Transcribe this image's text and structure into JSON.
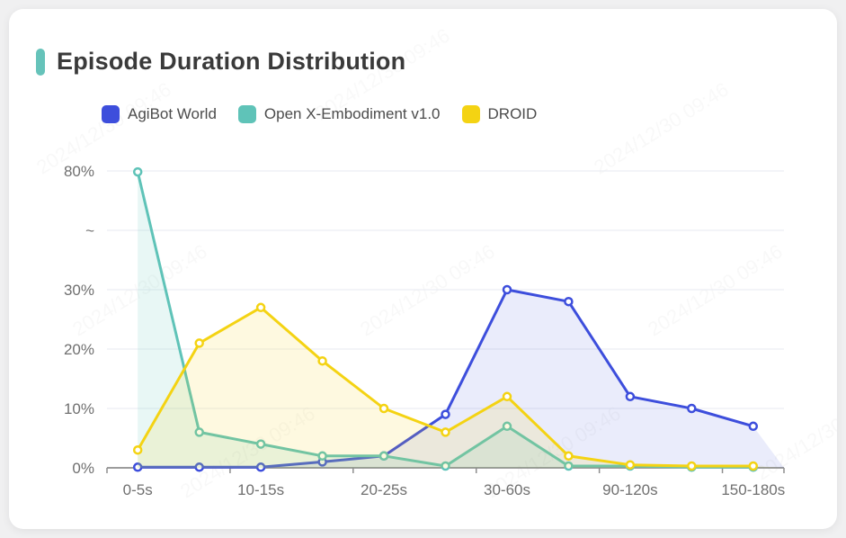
{
  "page": {
    "background": "#f0f0f1"
  },
  "card": {
    "title": "Episode Duration Distribution",
    "accent_color": "#66c3ba",
    "background": "#ffffff"
  },
  "legend": {
    "position": "top",
    "items": [
      {
        "label": "AgiBot World",
        "color": "#3d4edc"
      },
      {
        "label": "Open X-Embodiment v1.0",
        "color": "#5fc3b8"
      },
      {
        "label": "DROID",
        "color": "#f4d313"
      }
    ]
  },
  "watermark": {
    "text": "2024/12/30 09:46",
    "color": "#8a8a8a",
    "opacity": 0.05
  },
  "chart_data": {
    "type": "line",
    "title": "Episode Duration Distribution",
    "categories_count": 11,
    "x_tick_labels": [
      {
        "index": 0,
        "label": "0-5s"
      },
      {
        "index": 2,
        "label": "10-15s"
      },
      {
        "index": 4,
        "label": "20-25s"
      },
      {
        "index": 6,
        "label": "30-60s"
      },
      {
        "index": 8,
        "label": "90-120s"
      },
      {
        "index": 10,
        "label": "150-180s"
      }
    ],
    "series": [
      {
        "name": "AgiBot World",
        "color": "#3d4edc",
        "area_opacity": 0.11,
        "values": [
          0.1,
          0.1,
          0.1,
          1,
          2,
          9,
          30,
          28,
          12,
          10,
          7
        ]
      },
      {
        "name": "Open X-Embodiment v1.0",
        "color": "#5fc3b8",
        "area_opacity": 0.14,
        "values": [
          79.6,
          6,
          4,
          2,
          2,
          0.3,
          7,
          0.3,
          0.3,
          0.1,
          0.1
        ]
      },
      {
        "name": "DROID",
        "color": "#f4d313",
        "area_opacity": 0.13,
        "values": [
          3,
          21,
          27,
          18,
          10,
          6,
          12,
          2,
          0.5,
          0.3,
          0.3
        ]
      }
    ],
    "y_axis": {
      "unit": "%",
      "tick_labels": [
        "0%",
        "10%",
        "20%",
        "30%",
        "~",
        "80%"
      ],
      "tick_interval": 10,
      "axis_break": true,
      "break_after": 30,
      "top_value": 80
    },
    "grid": true,
    "legend_position": "top",
    "marker": "circle",
    "area_fill": true,
    "colors": {
      "grid_line": "#e7eaf1",
      "axis_line": "#8e8e8e",
      "tick_text": "#6f6f6f"
    }
  }
}
